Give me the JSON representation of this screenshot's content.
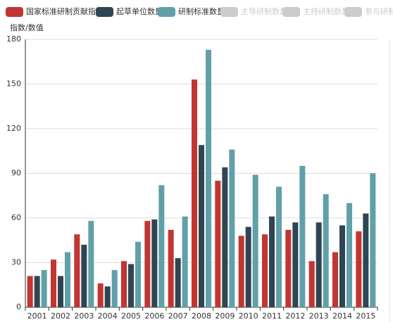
{
  "chart_data": {
    "type": "bar",
    "y_axis_label": "指数/数值",
    "categories": [
      "2001",
      "2002",
      "2003",
      "2004",
      "2005",
      "2006",
      "2007",
      "2008",
      "2009",
      "2010",
      "2011",
      "2012",
      "2013",
      "2014",
      "2015"
    ],
    "series": [
      {
        "name": "国家标准研制贡献指数",
        "color": "#c23531",
        "values": [
          21,
          32,
          49,
          16,
          31,
          58,
          52,
          153,
          85,
          48,
          49,
          52,
          31,
          37,
          51
        ]
      },
      {
        "name": "起草单位数量",
        "color": "#2f4554",
        "values": [
          21,
          21,
          42,
          14,
          29,
          59,
          33,
          109,
          94,
          54,
          61,
          57,
          57,
          55,
          63
        ]
      },
      {
        "name": "研制标准数量",
        "color": "#61a0a8",
        "values": [
          25,
          37,
          58,
          25,
          44,
          82,
          61,
          173,
          106,
          89,
          81,
          95,
          76,
          70,
          90
        ]
      },
      {
        "name": "主导研制数量",
        "color": "#cccccc",
        "hidden": true
      },
      {
        "name": "主持研制数量",
        "color": "#cccccc",
        "hidden": true
      },
      {
        "name": "参与研制数量",
        "color": "#cccccc",
        "hidden": true
      }
    ],
    "ylim": [
      0,
      180
    ],
    "yticks": [
      0,
      30,
      60,
      90,
      120,
      150,
      180
    ],
    "grid": true
  }
}
